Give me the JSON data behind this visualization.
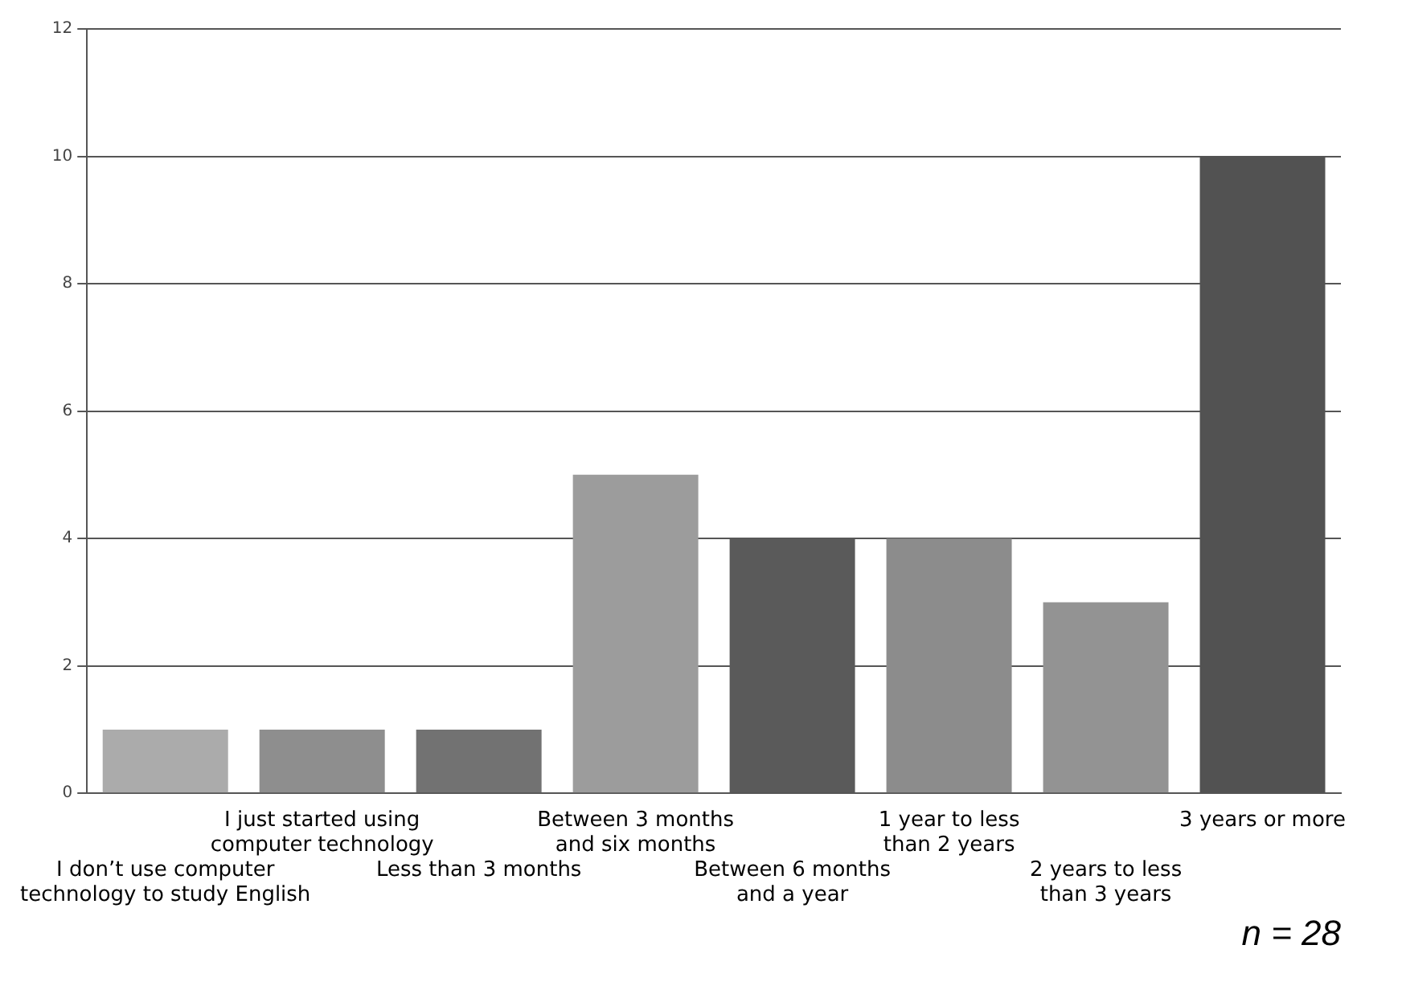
{
  "chart_data": {
    "type": "bar",
    "categories": [
      "I don’t use computer\ntechnology to study English",
      "I just started using\ncomputer technology",
      "Less than 3 months",
      "Between 3 months\nand six months",
      "Between 6 months\nand a year",
      "1 year to less\nthan 2 years",
      "2 years to less\nthan 3 years",
      "3 years or more"
    ],
    "values": [
      1,
      1,
      1,
      5,
      4,
      4,
      3,
      10
    ],
    "colors": [
      "#ababab",
      "#8e8e8e",
      "#727272",
      "#9c9c9c",
      "#5a5a5a",
      "#8c8c8c",
      "#939393",
      "#525252"
    ],
    "ylim": [
      0,
      12
    ],
    "yticks": [
      0,
      2,
      4,
      6,
      8,
      10,
      12
    ],
    "grid": "y",
    "annotations": [
      "n = 28"
    ]
  }
}
